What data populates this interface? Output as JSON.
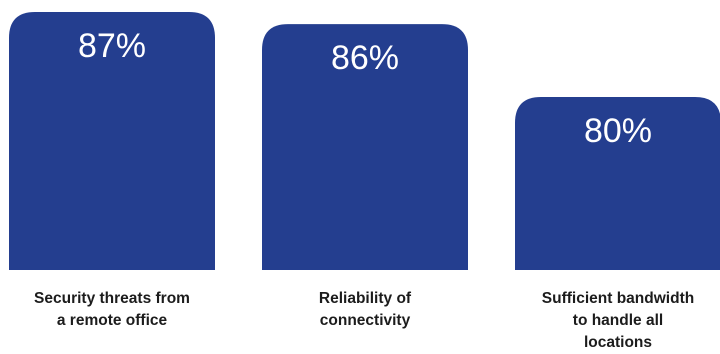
{
  "chart_data": {
    "type": "bar",
    "categories": [
      [
        "Security threats from",
        "a remote office"
      ],
      [
        "Reliability of",
        "connectivity"
      ],
      [
        "Sufficient bandwidth",
        "to handle all",
        "locations"
      ]
    ],
    "values": [
      87,
      86,
      80
    ],
    "value_labels": [
      "87%",
      "86%",
      "80%"
    ],
    "title": "",
    "xlabel": "",
    "ylabel": "",
    "grid": false,
    "legend": "none",
    "bar_color": "#243e8f",
    "value_label_color": "#ffffff",
    "category_label_color": "#1c1c1c"
  }
}
